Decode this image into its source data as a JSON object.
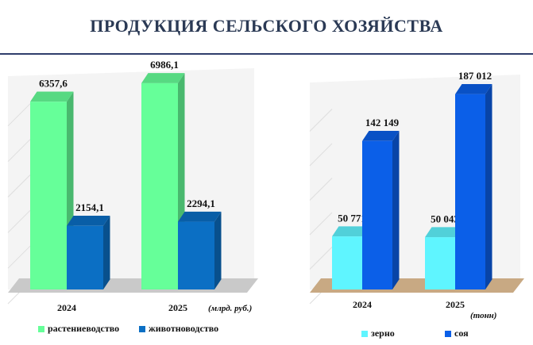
{
  "title": "ПРОДУКЦИЯ СЕЛЬСКОГО ХОЗЯЙСТВА",
  "chart_data": [
    {
      "type": "bar",
      "categories": [
        "2024",
        "2025"
      ],
      "unit_label": "(млрд. руб.)",
      "series": [
        {
          "name": "растениеводство",
          "values": [
            6357.6,
            6986.1
          ],
          "labels": [
            "6357,6",
            "6986,1"
          ],
          "color": "#66ff99"
        },
        {
          "name": "животноводство",
          "values": [
            2154.1,
            2294.1
          ],
          "labels": [
            "2154,1",
            "2294,1"
          ],
          "color": "#0b6fc4"
        }
      ],
      "ylim": [
        0,
        7600
      ],
      "legend_position": "bottom"
    },
    {
      "type": "bar",
      "categories": [
        "2024",
        "2025"
      ],
      "unit_label": "(тонн)",
      "series": [
        {
          "name": "зерно",
          "values": [
            50771,
            50043
          ],
          "labels": [
            "50 771",
            "50 043"
          ],
          "color": "#5ff5ff"
        },
        {
          "name": "соя",
          "values": [
            142149,
            187012
          ],
          "labels": [
            "142 149",
            "187 012"
          ],
          "color": "#0b5fe8"
        }
      ],
      "ylim": [
        0,
        205000
      ],
      "legend_position": "bottom"
    }
  ]
}
